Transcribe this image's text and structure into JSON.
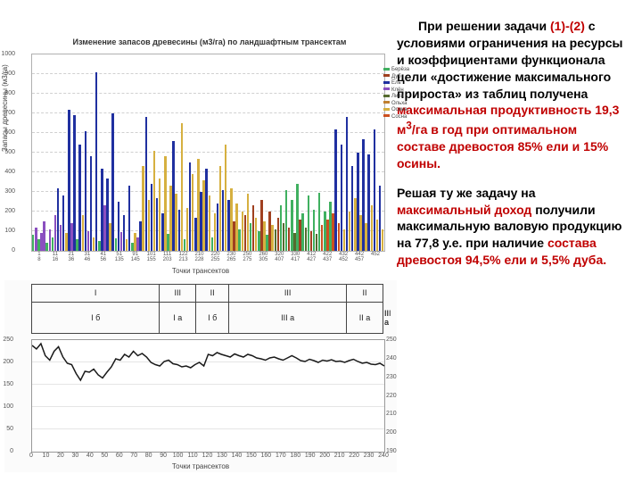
{
  "text": {
    "para1_lead": "При решении задачи ",
    "para1_red1": "(1)-(2)",
    "para1_mid": " с условиями ограничения на ресурсы и коэффициентами функционала цели «достижение максимального прироста» из таблиц получена ",
    "para1_red2": "максимальная продуктивность 19,3 м",
    "para1_sup": "3",
    "para1_red3": "/га в год при оптимальном составе древостоя 85% ели и 15% осины.",
    "para2_a": "Решая ту же задачу на ",
    "para2_red1": "максимальный доход",
    "para2_b": " получили максимальную валовую продукцию на 77,8 у.е. при наличие ",
    "para2_red2": "состава древостоя 94,5% ели и 5,5% дуба."
  },
  "chart1": {
    "title": "Изменение запасов древесины (м3/га) по ландшафтным трансектам",
    "ylabel": "Запасы древесины (м3/га)",
    "xlabel": "Точки трансектов",
    "ylim": [
      0,
      1000
    ],
    "ytick_step": 100,
    "plot_bg": "#ffffff",
    "grid_color": "#d0d0d0",
    "legend": [
      {
        "label": "Берёза",
        "color": "#40b060"
      },
      {
        "label": "Дуб",
        "color": "#a04020"
      },
      {
        "label": "Ель",
        "color": "#2030a0"
      },
      {
        "label": "Клён",
        "color": "#8b4fc0"
      },
      {
        "label": "Липа",
        "color": "#556b2f"
      },
      {
        "label": "Ольха",
        "color": "#c08030"
      },
      {
        "label": "Осина",
        "color": "#d6b040"
      },
      {
        "label": "Сосна",
        "color": "#cc5020"
      }
    ],
    "xticks": [
      {
        "top": "1",
        "bot": "8"
      },
      {
        "top": "11",
        "bot": "16"
      },
      {
        "top": "21",
        "bot": "36"
      },
      {
        "top": "31",
        "bot": "46"
      },
      {
        "top": "41",
        "bot": "56"
      },
      {
        "top": "51",
        "bot": "135"
      },
      {
        "top": "91",
        "bot": "145"
      },
      {
        "top": "101",
        "bot": "155"
      },
      {
        "top": "111",
        "bot": "203"
      },
      {
        "top": "122",
        "bot": "213"
      },
      {
        "top": "210",
        "bot": "228"
      },
      {
        "top": "220",
        "bot": "255"
      },
      {
        "top": "230",
        "bot": "265"
      },
      {
        "top": "250",
        "bot": "275"
      },
      {
        "top": "260",
        "bot": "305"
      },
      {
        "top": "320",
        "bot": "407"
      },
      {
        "top": "330",
        "bot": "417"
      },
      {
        "top": "412",
        "bot": "427"
      },
      {
        "top": "422",
        "bot": "437"
      },
      {
        "top": "432",
        "bot": "452"
      },
      {
        "top": "442",
        "bot": "457"
      },
      {
        "top": "452",
        "bot": ""
      }
    ],
    "bars": [
      {
        "s": 0,
        "v": 80
      },
      {
        "s": 3,
        "v": 120
      },
      {
        "s": 0,
        "v": 60
      },
      {
        "s": 3,
        "v": 90
      },
      {
        "s": 3,
        "v": 150
      },
      {
        "s": 0,
        "v": 40
      },
      {
        "s": 3,
        "v": 110
      },
      {
        "s": 0,
        "v": 70
      },
      {
        "s": 3,
        "v": 180
      },
      {
        "s": 2,
        "v": 320
      },
      {
        "s": 3,
        "v": 130
      },
      {
        "s": 2,
        "v": 280
      },
      {
        "s": 6,
        "v": 90
      },
      {
        "s": 2,
        "v": 720
      },
      {
        "s": 3,
        "v": 140
      },
      {
        "s": 2,
        "v": 690
      },
      {
        "s": 0,
        "v": 60
      },
      {
        "s": 2,
        "v": 540
      },
      {
        "s": 6,
        "v": 180
      },
      {
        "s": 2,
        "v": 610
      },
      {
        "s": 3,
        "v": 100
      },
      {
        "s": 2,
        "v": 480
      },
      {
        "s": 6,
        "v": 70
      },
      {
        "s": 2,
        "v": 910
      },
      {
        "s": 0,
        "v": 50
      },
      {
        "s": 2,
        "v": 420
      },
      {
        "s": 3,
        "v": 230
      },
      {
        "s": 2,
        "v": 370
      },
      {
        "s": 6,
        "v": 140
      },
      {
        "s": 2,
        "v": 700
      },
      {
        "s": 0,
        "v": 65
      },
      {
        "s": 2,
        "v": 250
      },
      {
        "s": 3,
        "v": 95
      },
      {
        "s": 2,
        "v": 180
      },
      {
        "s": 6,
        "v": 60
      },
      {
        "s": 2,
        "v": 330
      },
      {
        "s": 0,
        "v": 40
      },
      {
        "s": 6,
        "v": 90
      },
      {
        "s": 3,
        "v": 70
      },
      {
        "s": 2,
        "v": 150
      },
      {
        "s": 6,
        "v": 430
      },
      {
        "s": 2,
        "v": 680
      },
      {
        "s": 6,
        "v": 260
      },
      {
        "s": 2,
        "v": 340
      },
      {
        "s": 6,
        "v": 510
      },
      {
        "s": 2,
        "v": 270
      },
      {
        "s": 6,
        "v": 370
      },
      {
        "s": 2,
        "v": 190
      },
      {
        "s": 6,
        "v": 480
      },
      {
        "s": 0,
        "v": 85
      },
      {
        "s": 6,
        "v": 330
      },
      {
        "s": 2,
        "v": 560
      },
      {
        "s": 6,
        "v": 290
      },
      {
        "s": 2,
        "v": 210
      },
      {
        "s": 6,
        "v": 650
      },
      {
        "s": 0,
        "v": 60
      },
      {
        "s": 6,
        "v": 220
      },
      {
        "s": 2,
        "v": 450
      },
      {
        "s": 6,
        "v": 390
      },
      {
        "s": 2,
        "v": 170
      },
      {
        "s": 6,
        "v": 470
      },
      {
        "s": 2,
        "v": 300
      },
      {
        "s": 6,
        "v": 360
      },
      {
        "s": 2,
        "v": 420
      },
      {
        "s": 6,
        "v": 280
      },
      {
        "s": 0,
        "v": 70
      },
      {
        "s": 6,
        "v": 190
      },
      {
        "s": 2,
        "v": 240
      },
      {
        "s": 6,
        "v": 430
      },
      {
        "s": 2,
        "v": 310
      },
      {
        "s": 6,
        "v": 540
      },
      {
        "s": 2,
        "v": 260
      },
      {
        "s": 6,
        "v": 320
      },
      {
        "s": 1,
        "v": 150
      },
      {
        "s": 6,
        "v": 240
      },
      {
        "s": 0,
        "v": 110
      },
      {
        "s": 6,
        "v": 200
      },
      {
        "s": 1,
        "v": 180
      },
      {
        "s": 6,
        "v": 290
      },
      {
        "s": 0,
        "v": 140
      },
      {
        "s": 1,
        "v": 230
      },
      {
        "s": 6,
        "v": 170
      },
      {
        "s": 0,
        "v": 100
      },
      {
        "s": 1,
        "v": 260
      },
      {
        "s": 6,
        "v": 150
      },
      {
        "s": 0,
        "v": 80
      },
      {
        "s": 1,
        "v": 200
      },
      {
        "s": 6,
        "v": 130
      },
      {
        "s": 4,
        "v": 110
      },
      {
        "s": 1,
        "v": 170
      },
      {
        "s": 0,
        "v": 230
      },
      {
        "s": 4,
        "v": 140
      },
      {
        "s": 0,
        "v": 310
      },
      {
        "s": 1,
        "v": 120
      },
      {
        "s": 0,
        "v": 260
      },
      {
        "s": 4,
        "v": 90
      },
      {
        "s": 0,
        "v": 340
      },
      {
        "s": 1,
        "v": 160
      },
      {
        "s": 0,
        "v": 190
      },
      {
        "s": 4,
        "v": 120
      },
      {
        "s": 0,
        "v": 280
      },
      {
        "s": 1,
        "v": 100
      },
      {
        "s": 0,
        "v": 210
      },
      {
        "s": 4,
        "v": 85
      },
      {
        "s": 0,
        "v": 295
      },
      {
        "s": 7,
        "v": 130
      },
      {
        "s": 0,
        "v": 200
      },
      {
        "s": 7,
        "v": 160
      },
      {
        "s": 0,
        "v": 250
      },
      {
        "s": 7,
        "v": 190
      },
      {
        "s": 2,
        "v": 620
      },
      {
        "s": 7,
        "v": 140
      },
      {
        "s": 2,
        "v": 540
      },
      {
        "s": 6,
        "v": 110
      },
      {
        "s": 2,
        "v": 680
      },
      {
        "s": 6,
        "v": 200
      },
      {
        "s": 2,
        "v": 430
      },
      {
        "s": 6,
        "v": 270
      },
      {
        "s": 2,
        "v": 500
      },
      {
        "s": 6,
        "v": 180
      },
      {
        "s": 2,
        "v": 570
      },
      {
        "s": 6,
        "v": 140
      },
      {
        "s": 2,
        "v": 490
      },
      {
        "s": 6,
        "v": 230
      },
      {
        "s": 2,
        "v": 620
      },
      {
        "s": 6,
        "v": 160
      },
      {
        "s": 2,
        "v": 330
      },
      {
        "s": 6,
        "v": 110
      }
    ]
  },
  "chart2": {
    "xlabel": "Точки трансектов",
    "ylim": [
      0,
      250
    ],
    "ylim2": [
      190,
      250
    ],
    "xlim": [
      0,
      240
    ],
    "ytick_step": 50,
    "xtick_step": 10,
    "plot_bg": "#ffffff",
    "grid_color": "#e5e5e5",
    "line_color": "#1a1a1a",
    "line_width": 1.5,
    "table": {
      "row1": [
        {
          "label": "I",
          "w": 37
        },
        {
          "label": "III",
          "w": 10
        },
        {
          "label": "II",
          "w": 9
        },
        {
          "label": "III",
          "w": 34
        },
        {
          "label": "II",
          "w": 10
        }
      ],
      "row2": [
        {
          "label": "I б",
          "w": 8
        },
        {
          "label": "I а",
          "w": 12
        },
        {
          "label": "I б",
          "w": 17
        },
        {
          "label": "III а",
          "w": 10
        },
        {
          "label": "II а",
          "w": 9
        },
        {
          "label": "III а",
          "w": 34
        },
        {
          "label": "II а",
          "w": 10
        }
      ]
    },
    "series": [
      [
        0,
        238
      ],
      [
        3,
        230
      ],
      [
        6,
        242
      ],
      [
        9,
        215
      ],
      [
        12,
        205
      ],
      [
        15,
        225
      ],
      [
        18,
        235
      ],
      [
        21,
        212
      ],
      [
        24,
        198
      ],
      [
        27,
        195
      ],
      [
        30,
        175
      ],
      [
        33,
        160
      ],
      [
        36,
        180
      ],
      [
        39,
        178
      ],
      [
        42,
        185
      ],
      [
        45,
        172
      ],
      [
        48,
        165
      ],
      [
        51,
        178
      ],
      [
        54,
        190
      ],
      [
        57,
        208
      ],
      [
        60,
        205
      ],
      [
        63,
        218
      ],
      [
        66,
        212
      ],
      [
        69,
        225
      ],
      [
        72,
        215
      ],
      [
        75,
        220
      ],
      [
        78,
        212
      ],
      [
        81,
        200
      ],
      [
        84,
        195
      ],
      [
        87,
        192
      ],
      [
        90,
        202
      ],
      [
        93,
        205
      ],
      [
        96,
        197
      ],
      [
        99,
        195
      ],
      [
        102,
        190
      ],
      [
        105,
        192
      ],
      [
        108,
        188
      ],
      [
        111,
        195
      ],
      [
        114,
        200
      ],
      [
        117,
        192
      ],
      [
        120,
        218
      ],
      [
        123,
        215
      ],
      [
        126,
        222
      ],
      [
        129,
        218
      ],
      [
        132,
        215
      ],
      [
        135,
        212
      ],
      [
        138,
        219
      ],
      [
        141,
        215
      ],
      [
        144,
        212
      ],
      [
        147,
        218
      ],
      [
        150,
        215
      ],
      [
        153,
        210
      ],
      [
        156,
        208
      ],
      [
        159,
        205
      ],
      [
        162,
        210
      ],
      [
        165,
        212
      ],
      [
        168,
        208
      ],
      [
        171,
        205
      ],
      [
        174,
        210
      ],
      [
        177,
        215
      ],
      [
        180,
        210
      ],
      [
        183,
        204
      ],
      [
        186,
        202
      ],
      [
        189,
        207
      ],
      [
        192,
        204
      ],
      [
        195,
        200
      ],
      [
        198,
        205
      ],
      [
        201,
        203
      ],
      [
        204,
        206
      ],
      [
        207,
        202
      ],
      [
        210,
        203
      ],
      [
        213,
        200
      ],
      [
        216,
        204
      ],
      [
        219,
        207
      ],
      [
        222,
        202
      ],
      [
        225,
        198
      ],
      [
        228,
        200
      ],
      [
        231,
        196
      ],
      [
        234,
        195
      ],
      [
        237,
        198
      ],
      [
        240,
        192
      ]
    ]
  }
}
